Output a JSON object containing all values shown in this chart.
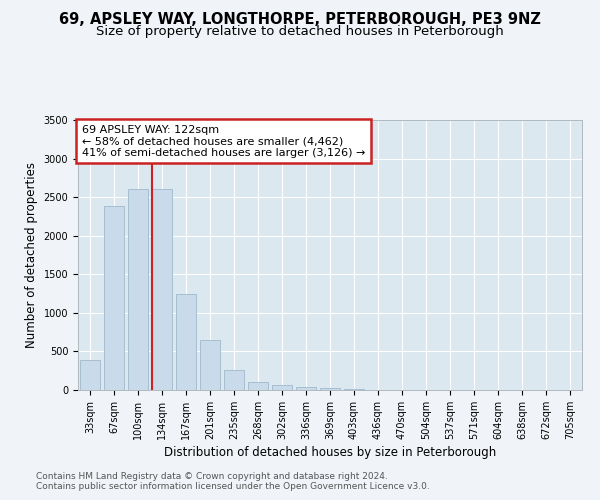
{
  "title": "69, APSLEY WAY, LONGTHORPE, PETERBOROUGH, PE3 9NZ",
  "subtitle": "Size of property relative to detached houses in Peterborough",
  "xlabel": "Distribution of detached houses by size in Peterborough",
  "ylabel": "Number of detached properties",
  "categories": [
    "33sqm",
    "67sqm",
    "100sqm",
    "134sqm",
    "167sqm",
    "201sqm",
    "235sqm",
    "268sqm",
    "302sqm",
    "336sqm",
    "369sqm",
    "403sqm",
    "436sqm",
    "470sqm",
    "504sqm",
    "537sqm",
    "571sqm",
    "604sqm",
    "638sqm",
    "672sqm",
    "705sqm"
  ],
  "values": [
    390,
    2380,
    2610,
    2610,
    1240,
    645,
    255,
    110,
    60,
    45,
    25,
    15,
    0,
    0,
    0,
    0,
    0,
    0,
    0,
    0,
    0
  ],
  "bar_color": "#c9daea",
  "bar_edge_color": "#a0b8cc",
  "red_line_x": 3.0,
  "annotation_text_line1": "69 APSLEY WAY: 122sqm",
  "annotation_text_line2": "← 58% of detached houses are smaller (4,462)",
  "annotation_text_line3": "41% of semi-detached houses are larger (3,126) →",
  "annotation_box_facecolor": "#ffffff",
  "annotation_box_edgecolor": "#cc2222",
  "background_color": "#f0f4f8",
  "plot_bg_color": "#dce8f0",
  "grid_color": "#ffffff",
  "footer_line1": "Contains HM Land Registry data © Crown copyright and database right 2024.",
  "footer_line2": "Contains public sector information licensed under the Open Government Licence v3.0.",
  "ylim": [
    0,
    3500
  ],
  "yticks": [
    0,
    500,
    1000,
    1500,
    2000,
    2500,
    3000,
    3500
  ],
  "title_fontsize": 10.5,
  "subtitle_fontsize": 9.5,
  "axis_label_fontsize": 8.5,
  "tick_fontsize": 7,
  "annotation_fontsize": 8,
  "footer_fontsize": 6.5
}
